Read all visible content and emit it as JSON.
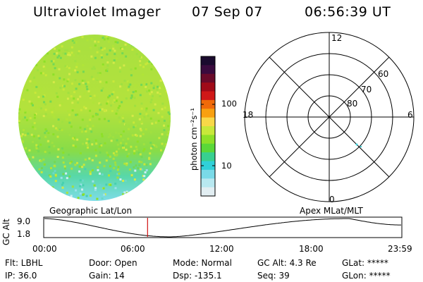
{
  "header": {
    "instrument": "Ultraviolet Imager",
    "date": "07 Sep 07",
    "time": "06:56:39 UT"
  },
  "colorbar": {
    "unit_label": "photon cm⁻²s⁻¹",
    "ticks": [
      "100",
      "10"
    ],
    "colors": [
      "#1a0a2e",
      "#3a0a3e",
      "#6a0a2a",
      "#a00a18",
      "#d01818",
      "#f06a0a",
      "#f8a010",
      "#f8d848",
      "#c8e83a",
      "#8ee028",
      "#5ad838",
      "#38d090",
      "#30d0d8",
      "#7adae8",
      "#b8e8f0",
      "#e2eef2"
    ]
  },
  "polar_plot": {
    "top_label": "12",
    "bottom_label": "0",
    "left_label": "18",
    "right_label": "6",
    "lat_labels": [
      "60",
      "70",
      "80"
    ]
  },
  "timeline": {
    "ylabel": "GC Alt",
    "y_ticks": [
      "9.0",
      "1.8"
    ],
    "left_title": "Geographic Lat/Lon",
    "right_title": "Apex MLat/MLT",
    "x_ticks": [
      "00:00",
      "06:00",
      "12:00",
      "18:00",
      "23:59"
    ],
    "marker_hours": 6.94
  },
  "info": {
    "flt": "Flt: LBHL",
    "ip": "IP: 36.0",
    "door": "Door: Open",
    "gain": "Gain: 14",
    "mode": "Mode: Normal",
    "dsp": "Dsp: -135.1",
    "gcalt": "GC Alt: 4.3 Re",
    "seq": "Seq: 39",
    "glat": "GLat: *****",
    "glon": "GLon: *****"
  }
}
